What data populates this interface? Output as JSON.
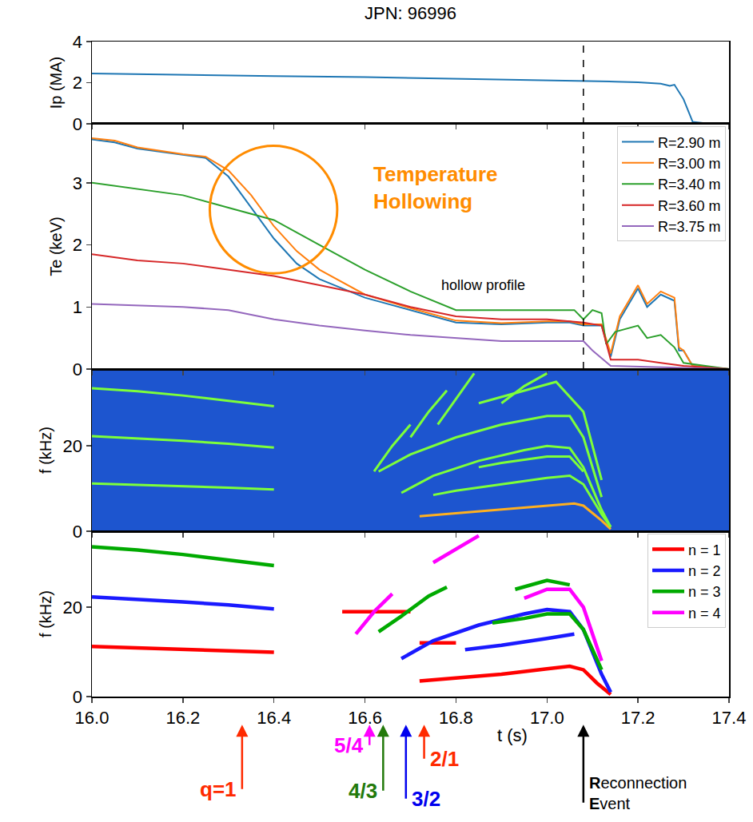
{
  "chart_data": [
    {
      "type": "line",
      "title": "JPN: 96996",
      "ylabel": "Ip (MA)",
      "color": "#1f77b4",
      "x": [
        16.0,
        16.2,
        16.4,
        16.6,
        16.8,
        17.0,
        17.08,
        17.15,
        17.2,
        17.25,
        17.27,
        17.28,
        17.3,
        17.32,
        17.35,
        17.4
      ],
      "values": [
        2.45,
        2.38,
        2.32,
        2.27,
        2.2,
        2.12,
        2.08,
        2.05,
        2.02,
        1.95,
        1.85,
        1.9,
        1.2,
        0.1,
        0.02,
        0
      ],
      "xlim": [
        16.0,
        17.4
      ],
      "xticks": [
        {
          "value": 16,
          "label": "16.0"
        },
        16.2,
        16.4,
        16.6,
        16.8,
        {
          "value": 17,
          "label": "17.0"
        },
        17.2,
        17.4
      ],
      "ylim": [
        0,
        4
      ],
      "yticks": [
        0,
        2,
        4
      ],
      "tick_labels": "y"
    },
    {
      "type": "line",
      "ylabel": "Te (keV)",
      "legend": "upper right",
      "tick_labels": "y",
      "xlim": [
        16.0,
        17.4
      ],
      "xticks": [
        {
          "value": 16,
          "label": "16.0"
        },
        16.2,
        16.4,
        16.6,
        16.8,
        {
          "value": 17,
          "label": "17.0"
        },
        17.2,
        17.4
      ],
      "ylim": [
        0,
        3.95
      ],
      "yticks": [
        0,
        1,
        2,
        3
      ],
      "series": [
        {
          "name": "R=2.90 m",
          "color": "#1f77b4",
          "x": [
            16.0,
            16.05,
            16.1,
            16.2,
            16.25,
            16.3,
            16.35,
            16.4,
            16.45,
            16.5,
            16.6,
            16.7,
            16.8,
            16.9,
            17.0,
            17.05,
            17.08,
            17.12,
            17.14,
            17.16,
            17.2,
            17.22,
            17.25,
            17.28,
            17.29,
            17.3,
            17.32,
            17.4
          ],
          "values": [
            3.7,
            3.65,
            3.55,
            3.45,
            3.4,
            3.1,
            2.6,
            2.1,
            1.7,
            1.45,
            1.15,
            0.95,
            0.75,
            0.72,
            0.75,
            0.75,
            0.7,
            0.7,
            0.2,
            0.8,
            1.3,
            1.0,
            1.2,
            1.1,
            0.3,
            0.3,
            0.05,
            0
          ]
        },
        {
          "name": "R=3.00 m",
          "color": "#ff7f0e",
          "x": [
            16.0,
            16.05,
            16.1,
            16.2,
            16.25,
            16.3,
            16.35,
            16.4,
            16.45,
            16.5,
            16.6,
            16.7,
            16.8,
            16.9,
            17.0,
            17.05,
            17.08,
            17.12,
            17.14,
            17.16,
            17.2,
            17.22,
            17.25,
            17.28,
            17.29,
            17.3,
            17.32,
            17.4
          ],
          "values": [
            3.72,
            3.68,
            3.57,
            3.46,
            3.42,
            3.2,
            2.8,
            2.3,
            1.9,
            1.6,
            1.2,
            0.98,
            0.78,
            0.74,
            0.77,
            0.77,
            0.72,
            0.72,
            0.25,
            0.85,
            1.35,
            1.05,
            1.25,
            1.15,
            0.35,
            0.3,
            0.05,
            0
          ]
        },
        {
          "name": "R=3.40 m",
          "color": "#2ca02c",
          "x": [
            16.0,
            16.1,
            16.2,
            16.3,
            16.4,
            16.5,
            16.6,
            16.7,
            16.8,
            16.9,
            17.0,
            17.06,
            17.08,
            17.1,
            17.12,
            17.13,
            17.15,
            17.2,
            17.22,
            17.25,
            17.28,
            17.3,
            17.4
          ],
          "values": [
            3.0,
            2.9,
            2.8,
            2.6,
            2.4,
            2.0,
            1.6,
            1.25,
            0.95,
            0.95,
            0.95,
            0.95,
            0.8,
            0.95,
            0.9,
            0.4,
            0.6,
            0.7,
            0.5,
            0.55,
            0.35,
            0.1,
            0
          ]
        },
        {
          "name": "R=3.60 m",
          "color": "#d62728",
          "x": [
            16.0,
            16.1,
            16.2,
            16.3,
            16.4,
            16.5,
            16.6,
            16.7,
            16.8,
            16.9,
            17.0,
            17.08,
            17.12,
            17.14,
            17.2,
            17.25,
            17.3,
            17.4
          ],
          "values": [
            1.85,
            1.75,
            1.7,
            1.6,
            1.5,
            1.35,
            1.2,
            1.0,
            0.85,
            0.8,
            0.8,
            0.75,
            0.7,
            0.15,
            0.15,
            0.1,
            0.05,
            0
          ]
        },
        {
          "name": "R=3.75 m",
          "color": "#9467bd",
          "x": [
            16.0,
            16.2,
            16.3,
            16.4,
            16.5,
            16.6,
            16.7,
            16.8,
            16.9,
            17.0,
            17.08,
            17.1,
            17.14,
            17.4
          ],
          "values": [
            1.05,
            1.0,
            0.95,
            0.8,
            0.7,
            0.62,
            0.55,
            0.5,
            0.45,
            0.45,
            0.45,
            0.3,
            0.05,
            0
          ]
        }
      ],
      "annotations": [
        {
          "text": [
            "Temperature",
            "Hollowing"
          ],
          "x": 16.755,
          "y": 2.92,
          "color": "#ff8c00"
        },
        {
          "text": "hollow profile",
          "x": 16.86,
          "y": 1.35,
          "color": "#000000"
        }
      ]
    },
    {
      "type": "spectrogram",
      "ylabel": "f (kHz)",
      "tick_labels": "y",
      "xlim": [
        16.0,
        17.4
      ],
      "xticks": [
        {
          "value": 16,
          "label": "16.0"
        },
        16.2,
        16.4,
        16.6,
        16.8,
        {
          "value": 17,
          "label": "17.0"
        },
        17.2,
        17.4
      ],
      "ylim": [
        0,
        38
      ],
      "yticks": [
        0,
        20
      ],
      "series": [
        {
          "color": "#7dff3a",
          "x": [
            16.0,
            16.1,
            16.2,
            16.3,
            16.4
          ],
          "values": [
            11.2,
            10.9,
            10.6,
            10.2,
            9.8
          ]
        },
        {
          "color": "#7dff3a",
          "x": [
            16.0,
            16.1,
            16.2,
            16.3,
            16.4
          ],
          "values": [
            22.3,
            21.8,
            21.2,
            20.5,
            19.6
          ]
        },
        {
          "color": "#7dff3a",
          "x": [
            16.0,
            16.1,
            16.2,
            16.3,
            16.4
          ],
          "values": [
            33.5,
            32.8,
            31.8,
            30.5,
            29.3
          ]
        },
        {
          "color": "#ffb020",
          "x": [
            16.72,
            16.8,
            16.9,
            17.0,
            17.06,
            17.08,
            17.12,
            17.14
          ],
          "values": [
            3.5,
            4.2,
            5,
            6,
            6.5,
            6,
            2.5,
            0.5
          ]
        },
        {
          "color": "#7dff3a",
          "x": [
            16.75,
            16.8,
            16.9,
            17.0,
            17.05,
            17.08,
            17.12,
            17.14
          ],
          "values": [
            8.5,
            9.5,
            11,
            12.5,
            13,
            11,
            4,
            1
          ]
        },
        {
          "color": "#7dff3a",
          "x": [
            16.68,
            16.75,
            16.85,
            16.95,
            17.0,
            17.05,
            17.08,
            17.12,
            17.14
          ],
          "values": [
            9,
            13,
            16.5,
            19,
            20,
            19.5,
            15,
            5,
            1
          ]
        },
        {
          "color": "#7dff3a",
          "x": [
            16.63,
            16.7,
            16.8,
            16.9,
            17.0,
            17.05,
            17.08,
            17.12
          ],
          "values": [
            14,
            18,
            22,
            25,
            27,
            27,
            22,
            8
          ]
        },
        {
          "color": "#7dff3a",
          "x": [
            16.85,
            16.95,
            17.02,
            17.08,
            17.12
          ],
          "values": [
            30,
            33,
            35,
            28,
            12
          ]
        },
        {
          "color": "#7dff3a",
          "x": [
            16.62,
            16.66,
            16.7
          ],
          "values": [
            14,
            20,
            25
          ]
        },
        {
          "color": "#7dff3a",
          "x": [
            16.7,
            16.74,
            16.78
          ],
          "values": [
            22,
            28,
            33
          ]
        },
        {
          "color": "#7dff3a",
          "x": [
            16.76,
            16.8,
            16.84
          ],
          "values": [
            25,
            31,
            37
          ]
        },
        {
          "color": "#7dff3a",
          "x": [
            16.9,
            16.95,
            17.0
          ],
          "values": [
            30,
            34,
            37
          ]
        },
        {
          "color": "#7dff3a",
          "x": [
            16.85,
            16.9,
            17.0,
            17.05,
            17.08
          ],
          "values": [
            15,
            16,
            17.5,
            17.5,
            14
          ]
        }
      ]
    },
    {
      "type": "line",
      "ylabel": "f (kHz)",
      "xlabel": "t (s)",
      "legend": "upper right",
      "xlim": [
        16.0,
        17.4
      ],
      "xticks": [
        {
          "value": 16,
          "label": "16.0"
        },
        16.2,
        16.4,
        16.6,
        16.8,
        {
          "value": 17,
          "label": "17.0"
        },
        17.2,
        17.4
      ],
      "ylim": [
        0,
        37
      ],
      "yticks": [
        0,
        20
      ],
      "series": [
        {
          "name": "n = 1",
          "color": "#ff0000",
          "x": [
            16.0,
            16.1,
            16.2,
            16.3,
            16.4,
            null,
            16.55,
            16.6,
            16.65,
            16.7,
            null,
            16.72,
            16.76,
            16.8,
            null,
            16.72,
            16.8,
            16.9,
            17.0,
            17.05,
            17.08,
            17.11,
            17.14
          ],
          "values": [
            11.2,
            10.9,
            10.6,
            10.2,
            9.9,
            null,
            19,
            19,
            19,
            19,
            null,
            12,
            12,
            12,
            null,
            3.5,
            4.2,
            5,
            6.2,
            6.8,
            6,
            3,
            0.5
          ]
        },
        {
          "name": "n = 2",
          "color": "#1a1aff",
          "x": [
            16.0,
            16.1,
            16.2,
            16.3,
            16.4,
            null,
            16.68,
            16.75,
            16.85,
            16.95,
            17.0,
            17.05,
            17.08,
            17.12,
            17.14,
            null,
            16.82,
            16.9,
            17.0,
            17.06
          ],
          "values": [
            22.3,
            21.8,
            21.2,
            20.5,
            19.6,
            null,
            8.5,
            12.5,
            16,
            18.5,
            19.5,
            19,
            15,
            5,
            1,
            null,
            10.5,
            11.5,
            13,
            14
          ]
        },
        {
          "name": "n = 3",
          "color": "#00aa00",
          "x": [
            16.0,
            16.1,
            16.2,
            16.3,
            16.4,
            null,
            16.63,
            16.68,
            16.74,
            16.78,
            null,
            16.88,
            16.95,
            17.0,
            17.05,
            17.08,
            17.12,
            null,
            16.93,
            17.0,
            17.05
          ],
          "values": [
            33.5,
            32.8,
            31.8,
            30.5,
            29.3,
            null,
            14.5,
            18,
            22.5,
            24.5,
            null,
            16.5,
            17.5,
            18.5,
            18.5,
            15,
            6,
            null,
            24,
            26,
            25
          ]
        },
        {
          "name": "n = 4",
          "color": "#ff00ff",
          "x": [
            16.58,
            16.62,
            16.66,
            null,
            16.75,
            16.8,
            16.85,
            null,
            16.95,
            17.0,
            17.05,
            17.08,
            17.12
          ],
          "values": [
            14,
            19,
            23,
            null,
            30,
            33,
            36,
            null,
            22,
            24,
            24,
            20,
            8
          ]
        }
      ],
      "markers": [
        {
          "x": 16.33,
          "label": "q=1",
          "color": "#ff2a00"
        },
        {
          "x": 16.61,
          "label": "5/4",
          "color": "#ff00ff"
        },
        {
          "x": 16.64,
          "label": "4/3",
          "color": "#237a0b"
        },
        {
          "x": 16.69,
          "label": "3/2",
          "color": "#0000ee"
        },
        {
          "x": 16.73,
          "label": "2/1",
          "color": "#ff2a00"
        },
        {
          "x": 17.08,
          "label": "Reconnection Event",
          "color": "#000000",
          "line_style": "dashed"
        }
      ]
    }
  ]
}
